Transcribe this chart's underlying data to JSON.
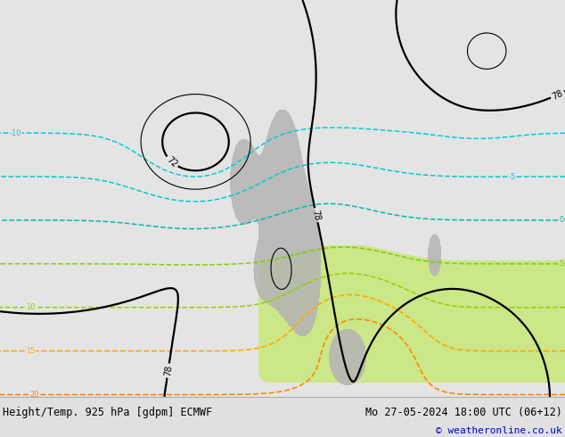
{
  "title_left": "Height/Temp. 925 hPa [gdpm] ECMWF",
  "title_right": "Mo 27-05-2024 18:00 UTC (06+12)",
  "copyright": "© weatheronline.co.uk",
  "title_fontsize": 8.5,
  "copyright_fontsize": 8,
  "fig_width": 6.34,
  "fig_height": 4.9,
  "dpi": 100,
  "text_color": "#000000",
  "copyright_color": "#0000cc",
  "bg_land": "#dcdcdc",
  "bg_ocean": "#e8e8e8",
  "green_color": "#c8e87a",
  "terrain_color": "#b4b4b4",
  "bar_bg": "#f0f0f0"
}
